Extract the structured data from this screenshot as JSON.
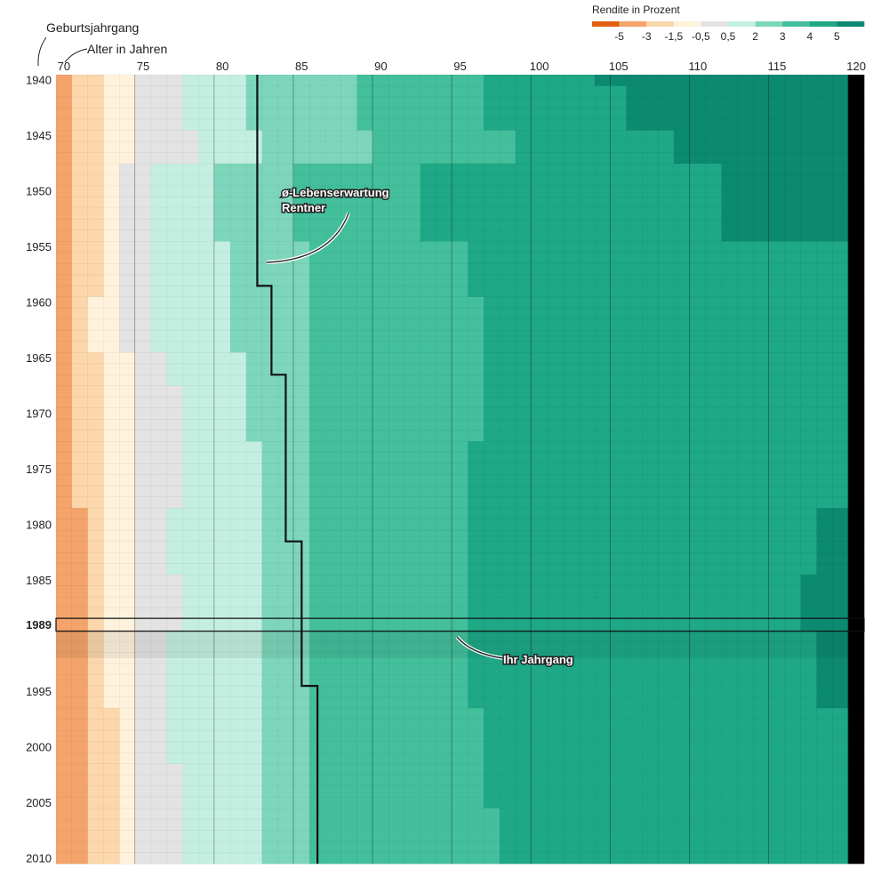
{
  "chart_data": {
    "type": "heatmap",
    "title": "",
    "y_axis_title": "Geburtsjahrgang",
    "x_axis_title": "Alter in Jahren",
    "x_range": [
      70,
      120
    ],
    "y_range": [
      1940,
      2010
    ],
    "x_ticks": [
      "70",
      "75",
      "80",
      "85",
      "90",
      "95",
      "100",
      "105",
      "110",
      "115",
      "120"
    ],
    "y_ticks": [
      "1940",
      "1945",
      "1950",
      "1955",
      "1960",
      "1965",
      "1970",
      "1975",
      "1980",
      "1985",
      "1989",
      "1995",
      "2000",
      "2005",
      "2010"
    ],
    "legend": {
      "title": "Rendite in Prozent",
      "labels": [
        "-5",
        "-3",
        "-1,5",
        "-0,5",
        "0,5",
        "2",
        "3",
        "4",
        "5"
      ],
      "colors": [
        "#e0620f",
        "#f4a46a",
        "#fbd7ab",
        "#fff2dc",
        "#e3e3e3",
        "#c4efe0",
        "#7dd6bb",
        "#43bf9b",
        "#1ea886",
        "#0b8a70"
      ]
    },
    "boundary_rule": "Each row is colored by return class; class index k applies from the listed age (inclusive) onwards.",
    "rows": [
      {
        "from": 1940,
        "to": 1940,
        "b": [
          0,
          0,
          71,
          73,
          75,
          78,
          82,
          89,
          97,
          104,
          120
        ]
      },
      {
        "from": 1941,
        "to": 1944,
        "b": [
          0,
          0,
          71,
          73,
          75,
          78,
          82,
          89,
          97,
          106,
          120
        ]
      },
      {
        "from": 1945,
        "to": 1947,
        "b": [
          0,
          0,
          71,
          73,
          75,
          79,
          83,
          90,
          99,
          109,
          120
        ]
      },
      {
        "from": 1948,
        "to": 1954,
        "b": [
          0,
          0,
          71,
          73,
          74,
          76,
          80,
          85,
          93,
          112,
          120
        ]
      },
      {
        "from": 1955,
        "to": 1959,
        "b": [
          0,
          0,
          71,
          73,
          74,
          76,
          81,
          86,
          96,
          120,
          120
        ]
      },
      {
        "from": 1960,
        "to": 1964,
        "b": [
          0,
          0,
          71,
          72,
          74,
          76,
          81,
          86,
          97,
          120,
          120
        ]
      },
      {
        "from": 1965,
        "to": 1967,
        "b": [
          0,
          70,
          71,
          73,
          75,
          77,
          82,
          86,
          97,
          120,
          120
        ]
      },
      {
        "from": 1968,
        "to": 1972,
        "b": [
          0,
          70,
          71,
          73,
          75,
          78,
          82,
          86,
          97,
          120,
          120
        ]
      },
      {
        "from": 1973,
        "to": 1978,
        "b": [
          0,
          70,
          71,
          73,
          75,
          78,
          83,
          86,
          96,
          120,
          120
        ]
      },
      {
        "from": 1979,
        "to": 1984,
        "b": [
          0,
          70,
          72,
          73,
          75,
          77,
          83,
          86,
          96,
          118,
          120
        ]
      },
      {
        "from": 1985,
        "to": 1989,
        "b": [
          0,
          70,
          72,
          73,
          75,
          78,
          83,
          86,
          96,
          117,
          120
        ]
      },
      {
        "from": 1990,
        "to": 1996,
        "b": [
          0,
          70,
          72,
          73,
          75,
          77,
          83,
          86,
          96,
          118,
          120
        ]
      },
      {
        "from": 1997,
        "to": 2001,
        "b": [
          0,
          70,
          72,
          74,
          75,
          77,
          83,
          86,
          97,
          120,
          120
        ]
      },
      {
        "from": 2002,
        "to": 2005,
        "b": [
          0,
          70,
          72,
          74,
          75,
          78,
          83,
          86,
          97,
          120,
          120
        ]
      },
      {
        "from": 2006,
        "to": 2010,
        "b": [
          0,
          70,
          72,
          74,
          75,
          78,
          83,
          86,
          98,
          120,
          120
        ]
      }
    ],
    "life_expectancy_series": {
      "name": "ø-Lebenserwartung Rentner",
      "points": [
        [
          1940,
          82.7
        ],
        [
          1958,
          82.7
        ],
        [
          1959,
          83.6
        ],
        [
          1966,
          83.6
        ],
        [
          1967,
          84.5
        ],
        [
          1981,
          84.5
        ],
        [
          1982,
          85.5
        ],
        [
          1994,
          85.5
        ],
        [
          1995,
          86.5
        ],
        [
          2010,
          86.5
        ]
      ]
    },
    "highlight": {
      "year": "1989",
      "label": "Ihr Jahrgang"
    },
    "annotations": [
      {
        "lines": [
          "ø-Lebenserwartung",
          "Rentner"
        ]
      },
      {
        "lines": [
          "Ihr Jahrgang"
        ]
      }
    ]
  }
}
